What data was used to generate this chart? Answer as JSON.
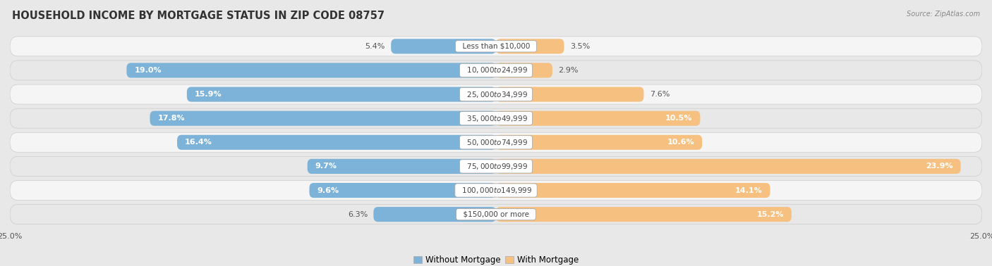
{
  "title": "HOUSEHOLD INCOME BY MORTGAGE STATUS IN ZIP CODE 08757",
  "source": "Source: ZipAtlas.com",
  "categories": [
    "Less than $10,000",
    "$10,000 to $24,999",
    "$25,000 to $34,999",
    "$35,000 to $49,999",
    "$50,000 to $74,999",
    "$75,000 to $99,999",
    "$100,000 to $149,999",
    "$150,000 or more"
  ],
  "without_mortgage": [
    5.4,
    19.0,
    15.9,
    17.8,
    16.4,
    9.7,
    9.6,
    6.3
  ],
  "with_mortgage": [
    3.5,
    2.9,
    7.6,
    10.5,
    10.6,
    23.9,
    14.1,
    15.2
  ],
  "color_without": "#7db3d8",
  "color_with": "#f5c080",
  "color_without_light": "#b0cfe8",
  "color_with_light": "#f8d9ac",
  "axis_limit": 25.0,
  "bg_color": "#e8e8e8",
  "row_bg_even": "#f5f5f5",
  "row_bg_odd": "#e8e8e8",
  "legend_label_without": "Without Mortgage",
  "legend_label_with": "With Mortgage",
  "title_fontsize": 10.5,
  "label_fontsize": 8,
  "category_fontsize": 7.5,
  "axis_label_fontsize": 8
}
